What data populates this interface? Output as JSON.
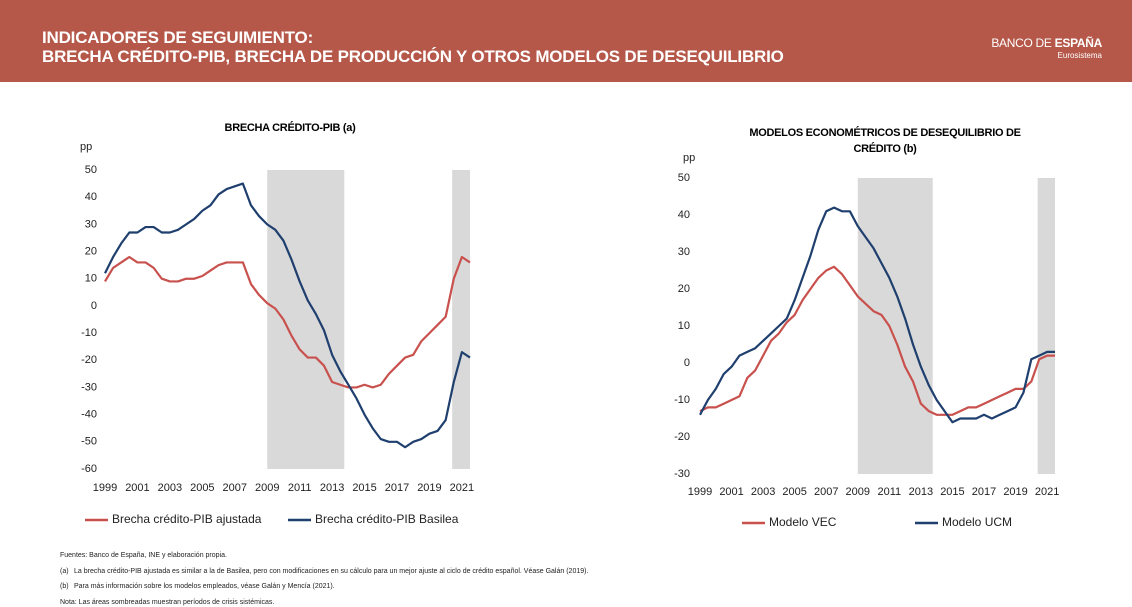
{
  "header": {
    "title_lines": [
      "INDICADORES DE SEGUIMIENTO:",
      "BRECHA CRÉDITO-PIB, BRECHA DE PRODUCCIÓN Y OTROS MODELOS DE DESEQUILIBRIO"
    ],
    "logo": {
      "name1": "BANCO DE",
      "name2": "ESPAÑA",
      "sub": "Eurosistema"
    }
  },
  "chart_data": [
    {
      "type": "line",
      "title": "BRECHA CRÉDITO-PIB (a)",
      "y_label": "pp",
      "x": [
        1999,
        1999.5,
        2000,
        2000.5,
        2001,
        2001.5,
        2002,
        2002.5,
        2003,
        2003.5,
        2004,
        2004.5,
        2005,
        2005.5,
        2006,
        2006.5,
        2007,
        2007.5,
        2008,
        2008.5,
        2009,
        2009.5,
        2010,
        2010.5,
        2011,
        2011.5,
        2012,
        2012.5,
        2013,
        2013.5,
        2014,
        2014.5,
        2015,
        2015.5,
        2016,
        2016.5,
        2017,
        2017.5,
        2018,
        2018.5,
        2019,
        2019.5,
        2020,
        2020.5,
        2021,
        2021.5
      ],
      "xlim": [
        1999,
        2021.5
      ],
      "xticks": [
        1999,
        2001,
        2003,
        2005,
        2007,
        2009,
        2011,
        2013,
        2015,
        2017,
        2019,
        2021
      ],
      "ylim": [
        -60,
        50
      ],
      "yticks": [
        -60,
        -50,
        -40,
        -30,
        -20,
        -10,
        0,
        10,
        20,
        30,
        40,
        50
      ],
      "shaded_periods": [
        [
          2009,
          2013.75
        ],
        [
          2020.4,
          2021.5
        ]
      ],
      "shade_color": "#d9d9d9",
      "series": [
        {
          "name": "Brecha crédito-PIB ajustada",
          "color": "#c9514d",
          "values": [
            9,
            14,
            16,
            18,
            16,
            16,
            14,
            10,
            9,
            9,
            10,
            10,
            11,
            13,
            15,
            16,
            16,
            16,
            8,
            4,
            1,
            -1,
            -5,
            -11,
            -16,
            -19,
            -19,
            -22,
            -28,
            -29,
            -30,
            -30,
            -29,
            -30,
            -29,
            -25,
            -22,
            -19,
            -18,
            -13,
            -10,
            -7,
            -4,
            10,
            18,
            16
          ]
        },
        {
          "name": "Brecha crédito-PIB Basilea",
          "color": "#1f3f6e",
          "values": [
            12,
            18,
            23,
            27,
            27,
            29,
            29,
            27,
            27,
            28,
            30,
            32,
            35,
            37,
            41,
            43,
            44,
            45,
            37,
            33,
            30,
            28,
            24,
            17,
            9,
            2,
            -3,
            -9,
            -18,
            -24,
            -29,
            -34,
            -40,
            -45,
            -49,
            -50,
            -50,
            -52,
            -50,
            -49,
            -47,
            -46,
            -42,
            -28,
            -17,
            -19
          ]
        }
      ]
    },
    {
      "type": "line",
      "title": "MODELOS ECONOMÉTRICOS DE DESEQUILIBRIO DE CRÉDITO (b)",
      "y_label": "pp",
      "x": [
        1999,
        1999.5,
        2000,
        2000.5,
        2001,
        2001.5,
        2002,
        2002.5,
        2003,
        2003.5,
        2004,
        2004.5,
        2005,
        2005.5,
        2006,
        2006.5,
        2007,
        2007.5,
        2008,
        2008.5,
        2009,
        2009.5,
        2010,
        2010.5,
        2011,
        2011.5,
        2012,
        2012.5,
        2013,
        2013.5,
        2014,
        2014.5,
        2015,
        2015.5,
        2016,
        2016.5,
        2017,
        2017.5,
        2018,
        2018.5,
        2019,
        2019.5,
        2020,
        2020.5,
        2021,
        2021.5
      ],
      "xlim": [
        1999,
        2021.5
      ],
      "xticks": [
        1999,
        2001,
        2003,
        2005,
        2007,
        2009,
        2011,
        2013,
        2015,
        2017,
        2019,
        2021
      ],
      "ylim": [
        -30,
        50
      ],
      "yticks": [
        -30,
        -20,
        -10,
        0,
        10,
        20,
        30,
        40,
        50
      ],
      "shaded_periods": [
        [
          2009,
          2013.75
        ],
        [
          2020.4,
          2021.5
        ]
      ],
      "shade_color": "#d9d9d9",
      "series": [
        {
          "name": "Modelo VEC",
          "color": "#c9514d",
          "values": [
            -13,
            -12,
            -12,
            -11,
            -10,
            -9,
            -4,
            -2,
            2,
            6,
            8,
            11,
            13,
            17,
            20,
            23,
            25,
            26,
            24,
            21,
            18,
            16,
            14,
            13,
            10,
            5,
            -1,
            -5,
            -11,
            -13,
            -14,
            -14,
            -14,
            -13,
            -12,
            -12,
            -11,
            -10,
            -9,
            -8,
            -7,
            -7,
            -5,
            1,
            2,
            2
          ]
        },
        {
          "name": "Modelo UCM",
          "color": "#1f3f6e",
          "values": [
            -14,
            -10,
            -7,
            -3,
            -1,
            2,
            3,
            4,
            6,
            8,
            10,
            12,
            17,
            23,
            29,
            36,
            41,
            42,
            41,
            41,
            37,
            34,
            31,
            27,
            23,
            18,
            12,
            5,
            -1,
            -6,
            -10,
            -13,
            -16,
            -15,
            -15,
            -15,
            -14,
            -15,
            -14,
            -13,
            -12,
            -8,
            1,
            2,
            3,
            3
          ]
        }
      ]
    }
  ],
  "footer": {
    "sources": "Fuentes: Banco de España, INE y elaboración propia.",
    "notes": [
      {
        "mark": "(a)",
        "text": "La brecha crédito-PIB ajustada es similar a la de Basilea, pero con modificaciones en su cálculo para un mejor ajuste al ciclo de crédito español. Véase Galán (2019)."
      },
      {
        "mark": "(b)",
        "text": "Para más información sobre los modelos empleados, véase Galán y Mencía (2021)."
      }
    ],
    "shading_note": "Nota: Las áreas sombreadas muestran períodos de crisis sistémicas."
  }
}
